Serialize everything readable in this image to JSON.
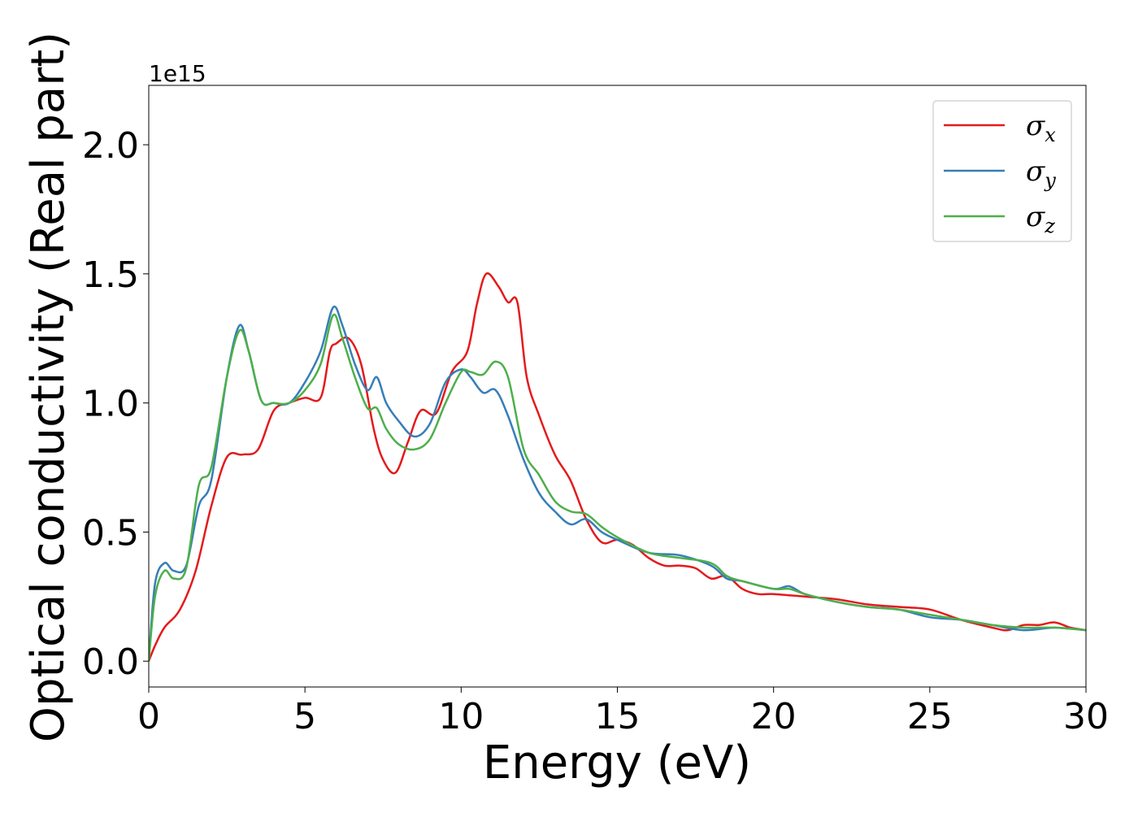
{
  "chart_data": {
    "type": "line",
    "xlabel": "Energy (eV)",
    "ylabel": "Optical conductivity (Real part)",
    "y_offset_label": "1e15",
    "xlim": [
      0,
      30
    ],
    "ylim": [
      -0.1,
      2.23
    ],
    "xticks": [
      0,
      5,
      10,
      15,
      20,
      25,
      30
    ],
    "yticks": [
      0.0,
      0.5,
      1.0,
      1.5,
      2.0
    ],
    "ytick_labels": [
      "0.0",
      "0.5",
      "1.0",
      "1.5",
      "2.0"
    ],
    "grid": false,
    "legend_placement": "top-right",
    "series": [
      {
        "name": "σx",
        "symbol": "σ",
        "sub": "x",
        "color": "#e41a1c",
        "x": [
          0,
          0.2,
          0.5,
          1.0,
          1.5,
          2.0,
          2.5,
          3.0,
          3.5,
          4.0,
          4.5,
          5.0,
          5.5,
          5.8,
          6.0,
          6.4,
          6.8,
          7.2,
          7.5,
          7.9,
          8.3,
          8.7,
          9.2,
          9.7,
          10.2,
          10.5,
          10.8,
          11.2,
          11.5,
          11.8,
          12.1,
          12.5,
          13.0,
          13.5,
          14.0,
          14.5,
          15.0,
          15.5,
          16.0,
          16.5,
          17.0,
          17.5,
          18.0,
          18.5,
          19.0,
          19.5,
          20.0,
          21.0,
          22.0,
          23.0,
          24.0,
          25.0,
          26.0,
          27.0,
          27.5,
          28.0,
          28.5,
          29.0,
          29.5,
          30.0
        ],
        "values": [
          0.0,
          0.06,
          0.13,
          0.2,
          0.35,
          0.6,
          0.79,
          0.8,
          0.82,
          0.97,
          1.0,
          1.02,
          1.02,
          1.2,
          1.23,
          1.25,
          1.15,
          0.9,
          0.78,
          0.73,
          0.85,
          0.97,
          0.96,
          1.12,
          1.2,
          1.38,
          1.5,
          1.45,
          1.39,
          1.39,
          1.1,
          0.95,
          0.8,
          0.7,
          0.55,
          0.46,
          0.47,
          0.45,
          0.4,
          0.37,
          0.37,
          0.36,
          0.32,
          0.33,
          0.28,
          0.26,
          0.26,
          0.25,
          0.24,
          0.22,
          0.21,
          0.2,
          0.16,
          0.13,
          0.12,
          0.14,
          0.14,
          0.15,
          0.13,
          0.12
        ]
      },
      {
        "name": "σy",
        "symbol": "σ",
        "sub": "y",
        "color": "#377eb8",
        "x": [
          0,
          0.2,
          0.5,
          0.8,
          1.2,
          1.6,
          2.0,
          2.5,
          2.9,
          3.2,
          3.6,
          4.0,
          4.5,
          5.0,
          5.5,
          5.9,
          6.2,
          6.6,
          7.0,
          7.3,
          7.6,
          8.0,
          8.5,
          9.0,
          9.5,
          10.0,
          10.3,
          10.7,
          11.1,
          11.5,
          12.0,
          12.5,
          13.0,
          13.5,
          14.0,
          14.5,
          15.0,
          16.0,
          17.0,
          18.0,
          18.5,
          19.0,
          20.0,
          20.5,
          21.0,
          22.0,
          23.0,
          24.0,
          25.0,
          26.0,
          27.0,
          28.0,
          29.0,
          30.0
        ],
        "values": [
          0.0,
          0.3,
          0.38,
          0.35,
          0.37,
          0.6,
          0.7,
          1.1,
          1.3,
          1.2,
          1.01,
          1.0,
          1.0,
          1.08,
          1.2,
          1.37,
          1.3,
          1.15,
          1.05,
          1.1,
          1.0,
          0.93,
          0.87,
          0.92,
          1.08,
          1.13,
          1.1,
          1.04,
          1.05,
          0.95,
          0.78,
          0.65,
          0.58,
          0.53,
          0.55,
          0.5,
          0.47,
          0.42,
          0.41,
          0.37,
          0.32,
          0.31,
          0.28,
          0.29,
          0.26,
          0.23,
          0.21,
          0.2,
          0.17,
          0.16,
          0.14,
          0.12,
          0.13,
          0.12
        ]
      },
      {
        "name": "σz",
        "symbol": "σ",
        "sub": "z",
        "color": "#4daf4a",
        "x": [
          0,
          0.2,
          0.5,
          0.8,
          1.2,
          1.6,
          2.0,
          2.5,
          2.9,
          3.2,
          3.6,
          4.0,
          4.5,
          5.0,
          5.5,
          5.9,
          6.2,
          6.6,
          7.0,
          7.3,
          7.6,
          8.0,
          8.5,
          9.0,
          9.5,
          10.0,
          10.3,
          10.7,
          11.1,
          11.5,
          12.0,
          12.5,
          13.0,
          13.5,
          14.0,
          14.5,
          15.0,
          16.0,
          17.0,
          18.0,
          18.5,
          19.0,
          20.0,
          20.5,
          21.0,
          22.0,
          23.0,
          24.0,
          25.0,
          26.0,
          27.0,
          28.0,
          29.0,
          30.0
        ],
        "values": [
          0.0,
          0.25,
          0.35,
          0.32,
          0.36,
          0.68,
          0.75,
          1.1,
          1.28,
          1.2,
          1.01,
          1.0,
          1.0,
          1.05,
          1.15,
          1.34,
          1.25,
          1.1,
          0.98,
          0.98,
          0.9,
          0.84,
          0.82,
          0.86,
          1.0,
          1.12,
          1.12,
          1.11,
          1.16,
          1.1,
          0.82,
          0.72,
          0.62,
          0.58,
          0.57,
          0.52,
          0.48,
          0.42,
          0.4,
          0.38,
          0.33,
          0.31,
          0.28,
          0.28,
          0.26,
          0.23,
          0.21,
          0.2,
          0.18,
          0.16,
          0.14,
          0.13,
          0.13,
          0.12
        ]
      }
    ]
  }
}
